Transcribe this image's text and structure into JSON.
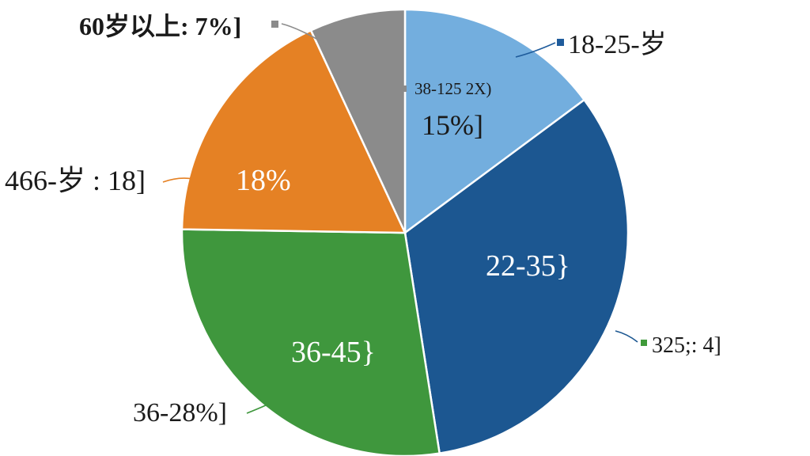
{
  "chart_data": {
    "type": "pie",
    "title": "",
    "start_angle_deg": 0,
    "direction": "clockwise",
    "slices": [
      {
        "name": "18-25-岁",
        "value": 15,
        "color": "#73aede",
        "inner_label": "15%]",
        "inner_sublabel": "38-125 2X)",
        "outer_label": "18-25-岁",
        "legend_marker_color": "#1f5c9c",
        "leader_color": "#1f5c9c"
      },
      {
        "name": "325;: 4]",
        "value": 33,
        "color": "#1c5791",
        "inner_label": "22-35}",
        "outer_label": "325;: 4]",
        "legend_marker_color": "#3f9a3a",
        "leader_color": "#1c5791"
      },
      {
        "name": "36-28%]",
        "value": 28,
        "color": "#3f973d",
        "inner_label": "36-45}",
        "outer_label": "36-28%]",
        "leader_color": "#3f973d"
      },
      {
        "name": "466-岁 : 18]",
        "value": 18,
        "color": "#e58124",
        "inner_label": "18%",
        "outer_label": "466-岁 : 18]",
        "leader_color": "#e58124"
      },
      {
        "name": "60岁以上: 7%]",
        "value": 7,
        "color": "#8b8b8b",
        "outer_label": "60岁以上: 7%]",
        "legend_marker_color": "#8b8b8b",
        "leader_color": "#8b8b8b"
      }
    ]
  }
}
